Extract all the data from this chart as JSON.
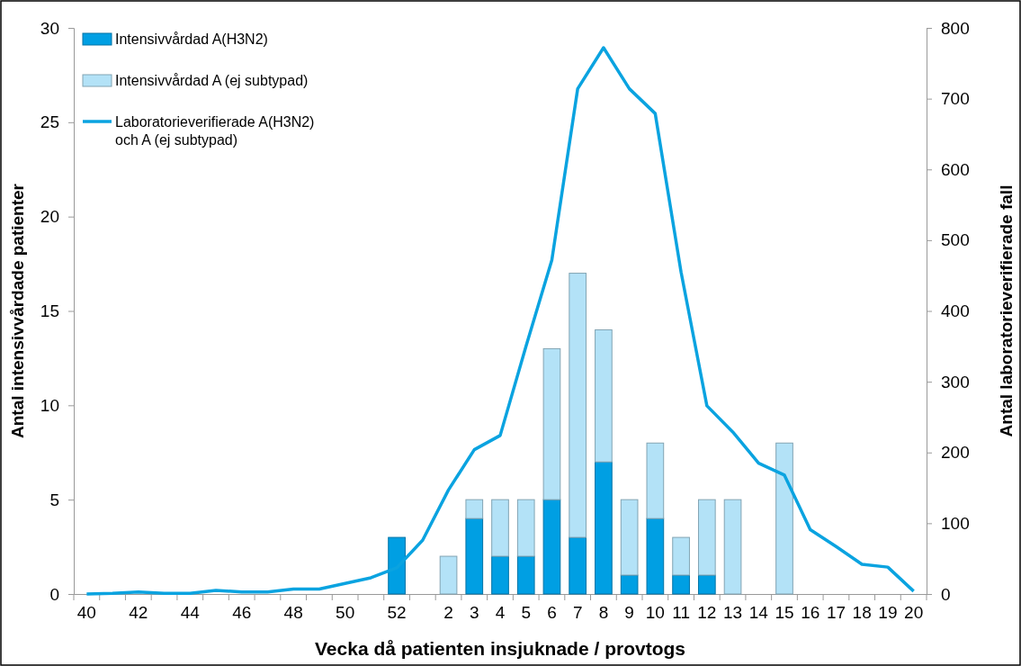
{
  "chart_data": {
    "type": "bar",
    "stacked": true,
    "xlabel": "Vecka då patienten insjuknade / provtogs",
    "ylabel": "Antal intensivvårdade patienter",
    "y2label": "Antal laboratorieverifierade fall",
    "categories": [
      "40",
      null,
      "42",
      null,
      "44",
      null,
      "46",
      null,
      "48",
      null,
      "50",
      null,
      "52",
      null,
      "2",
      "3",
      "4",
      "5",
      "6",
      "7",
      "8",
      "9",
      "10",
      "11",
      "12",
      "13",
      "14",
      "15",
      "16",
      "17",
      "18",
      "19",
      "20"
    ],
    "series": [
      {
        "name": "Intensivvårdad A(H3N2)",
        "color": "#009fe3",
        "values": [
          null,
          null,
          null,
          null,
          null,
          null,
          null,
          null,
          null,
          null,
          null,
          null,
          3,
          null,
          null,
          4,
          2,
          2,
          5,
          3,
          7,
          1,
          4,
          1,
          1,
          null,
          null,
          null,
          null,
          null,
          null,
          null,
          null
        ]
      },
      {
        "name": "Intensivvårdad A (ej subtypad)",
        "color": "#b3e2f7",
        "values": [
          null,
          null,
          null,
          null,
          null,
          null,
          null,
          null,
          null,
          null,
          null,
          null,
          null,
          null,
          2,
          1,
          3,
          3,
          8,
          14,
          7,
          4,
          4,
          2,
          4,
          5,
          null,
          8,
          null,
          null,
          null,
          null,
          null
        ]
      },
      {
        "name": "Laboratorieverifierade A(H3N2) och A (ej subtypad)",
        "type": "line",
        "axis": "y2",
        "color": "#0aa3e0",
        "values": [
          0,
          1,
          3,
          1,
          1,
          5,
          3,
          3,
          7,
          7,
          15,
          23,
          37,
          76,
          147,
          204,
          224,
          350,
          472,
          714,
          772,
          714,
          679,
          455,
          266,
          229,
          185,
          168,
          91,
          67,
          42,
          38,
          4
        ]
      }
    ],
    "ylim": [
      0,
      30
    ],
    "yticks": [
      0,
      5,
      10,
      15,
      20,
      25,
      30
    ],
    "y2lim": [
      0,
      800
    ],
    "y2ticks": [
      0,
      100,
      200,
      300,
      400,
      500,
      600,
      700,
      800
    ],
    "grid": false,
    "legend": "top left",
    "marker": "none",
    "line_style": "solid"
  }
}
